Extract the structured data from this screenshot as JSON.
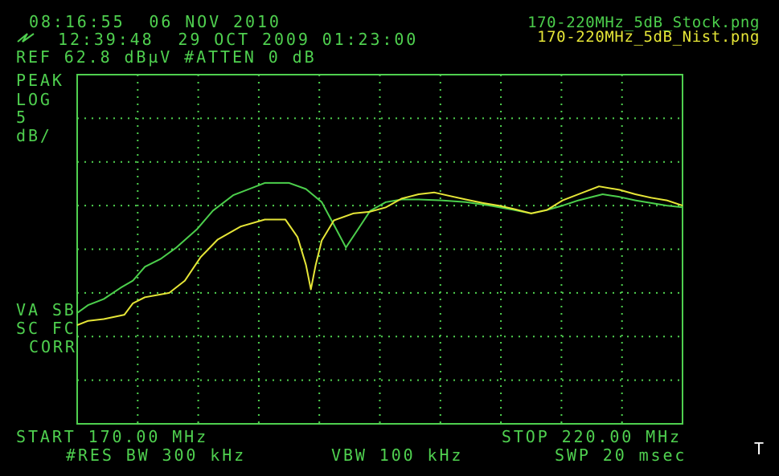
{
  "chart_data": {
    "type": "line",
    "header": {
      "time_line": "08:16:55  06 NOV 2010",
      "stored_line": "12:39:48  29 OCT 2009 01:23:00",
      "ref_line": "REF 62.8 dBµV #ATTEN 0 dB"
    },
    "left_labels": [
      "PEAK",
      "LOG",
      "5",
      "dB/"
    ],
    "status_labels": [
      "VA SB",
      "SC FC",
      "CORR"
    ],
    "start_label": "START 170.00 MHz",
    "stop_label": "STOP 220.00 MHz",
    "footer": [
      "#RES BW 300 kHz",
      "VBW 100 kHz",
      "SWP 20 msec"
    ],
    "corner_mark": "T",
    "xlim": [
      170,
      220
    ],
    "ylim": [
      22.8,
      62.8
    ],
    "grid": true,
    "series": [
      {
        "name": "170-220MHz_5dB_Stock.png",
        "color": "#4ccf4c",
        "x": [
          170.0,
          170.9,
          172.2,
          173.6,
          174.6,
          175.6,
          176.9,
          178.2,
          179.9,
          181.2,
          182.9,
          184.2,
          185.5,
          187.5,
          188.9,
          190.2,
          191.2,
          192.2,
          193.2,
          194.2,
          195.5,
          196.8,
          198.2,
          200.1,
          202.1,
          204.1,
          206.1,
          207.5,
          208.8,
          210.1,
          211.4,
          213.4,
          214.8,
          216.1,
          217.4,
          218.7,
          220.0
        ],
        "values": [
          35.5,
          36.4,
          37.1,
          38.4,
          39.2,
          40.8,
          41.7,
          43.0,
          45.1,
          47.2,
          49.0,
          49.7,
          50.4,
          50.4,
          49.7,
          48.2,
          45.6,
          43.0,
          45.1,
          47.2,
          48.2,
          48.5,
          48.5,
          48.4,
          48.2,
          47.8,
          47.3,
          46.9,
          47.3,
          47.8,
          48.4,
          49.1,
          48.8,
          48.4,
          48.1,
          47.8,
          47.6
        ]
      },
      {
        "name": "170-220MHz_5dB_Nist.png",
        "color": "#e6e637",
        "x": [
          170.0,
          170.9,
          172.2,
          173.9,
          174.6,
          175.6,
          177.6,
          178.9,
          180.2,
          181.6,
          183.5,
          185.5,
          187.2,
          188.2,
          188.9,
          189.3,
          189.7,
          190.2,
          191.2,
          192.8,
          194.2,
          195.5,
          196.8,
          198.2,
          199.5,
          200.8,
          202.1,
          203.5,
          204.8,
          206.1,
          207.5,
          208.8,
          210.1,
          211.4,
          213.1,
          214.8,
          216.1,
          217.4,
          218.7,
          220.0
        ],
        "values": [
          34.1,
          34.6,
          34.8,
          35.3,
          36.6,
          37.3,
          37.8,
          39.2,
          41.9,
          43.9,
          45.4,
          46.2,
          46.2,
          44.2,
          41.0,
          38.2,
          41.0,
          43.8,
          46.1,
          46.9,
          47.1,
          47.6,
          48.6,
          49.1,
          49.3,
          48.9,
          48.5,
          48.1,
          47.8,
          47.4,
          46.9,
          47.3,
          48.4,
          49.1,
          50.0,
          49.6,
          49.1,
          48.7,
          48.4,
          47.8
        ]
      }
    ]
  }
}
